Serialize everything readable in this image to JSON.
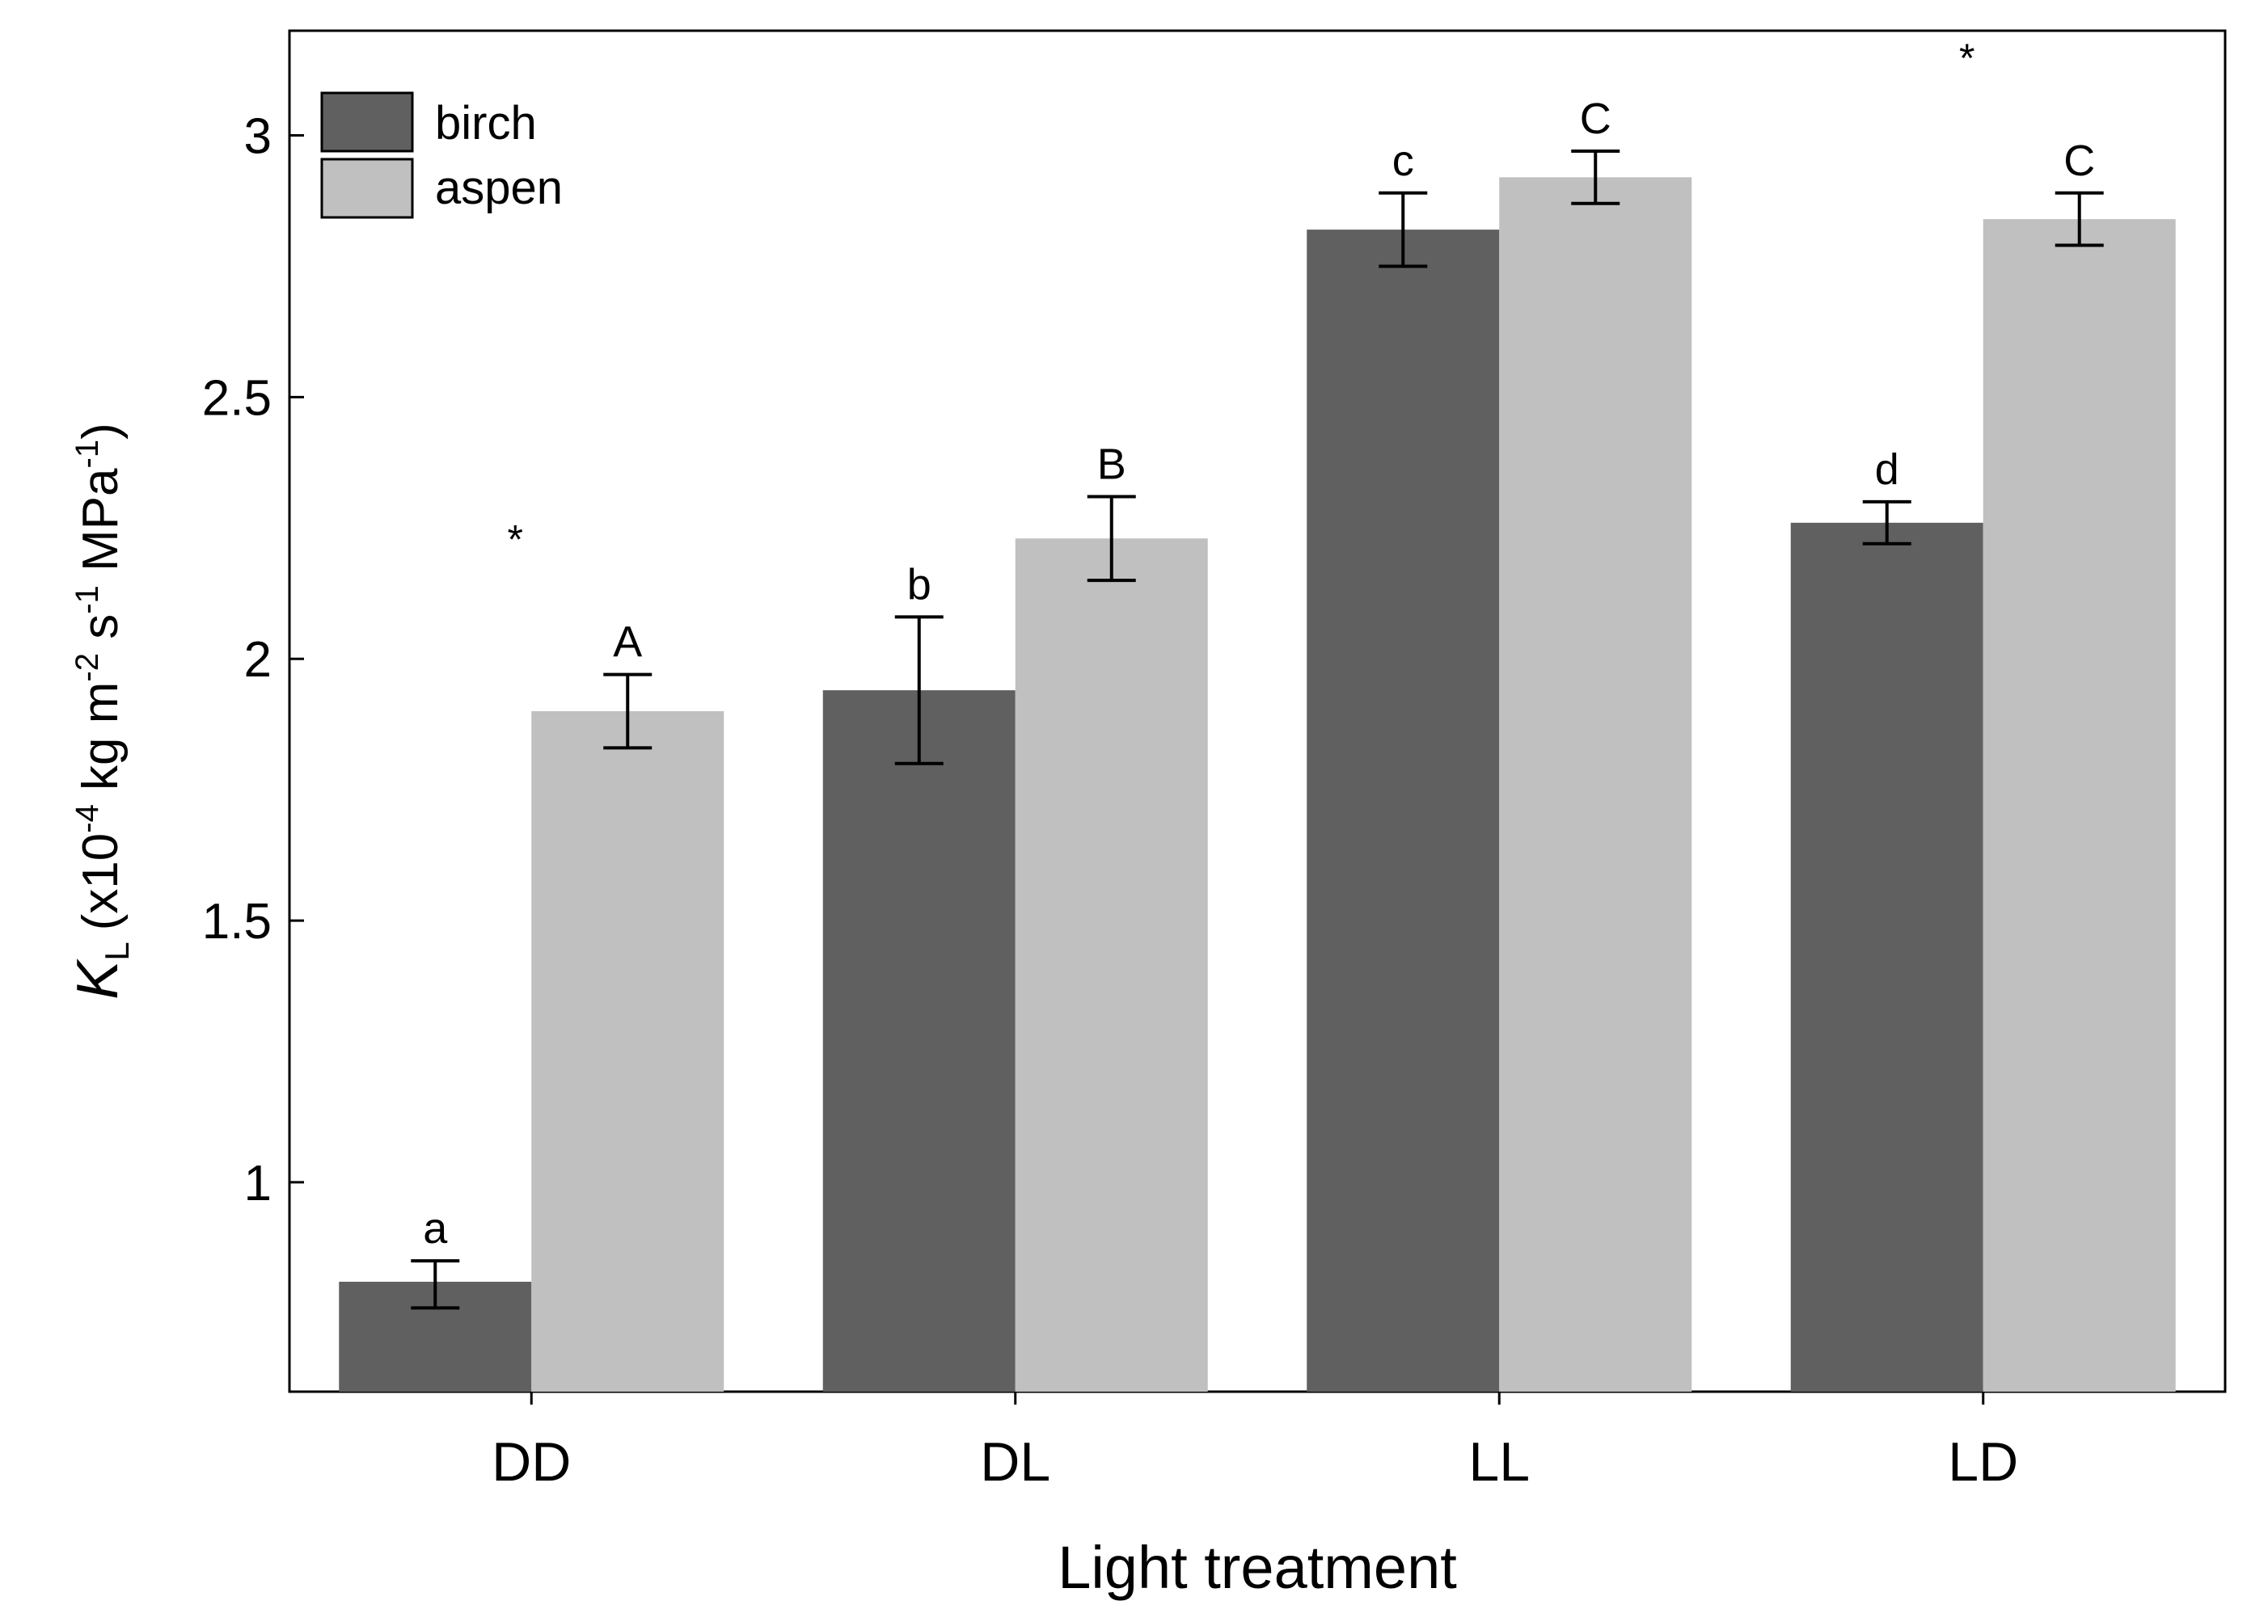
{
  "chart_data": {
    "type": "bar",
    "title": "",
    "xlabel": "Light treatment",
    "ylabel": {
      "symbol": "K",
      "subscript": "L",
      "unit_open": "(x10",
      "exp1": "-4",
      "unit_mid": " kg m",
      "exp2": "-2",
      "unit_s": " s",
      "exp3": "-1",
      "unit_mpa": " MPa",
      "exp4": "-1",
      "unit_close": ")"
    },
    "categories": [
      "DD",
      "DL",
      "LL",
      "LD"
    ],
    "ylim": [
      0.6,
      3.2
    ],
    "yticks": [
      1,
      1.5,
      2,
      2.5,
      3
    ],
    "ytick_labels": [
      "1",
      "1.5",
      "2",
      "2.5",
      "3"
    ],
    "series": [
      {
        "name": "birch",
        "color": "#606060",
        "values": [
          0.81,
          1.94,
          2.82,
          2.26
        ],
        "err_low": [
          0.76,
          1.8,
          2.75,
          2.22
        ],
        "err_high": [
          0.85,
          2.08,
          2.89,
          2.3
        ],
        "letters": [
          "a",
          "b",
          "c",
          "d"
        ]
      },
      {
        "name": "aspen",
        "color": "#c0c0c0",
        "values": [
          1.9,
          2.23,
          2.92,
          2.84
        ],
        "err_low": [
          1.83,
          2.15,
          2.87,
          2.79
        ],
        "err_high": [
          1.97,
          2.31,
          2.97,
          2.89
        ],
        "letters": [
          "A",
          "B",
          "C",
          "C"
        ]
      }
    ],
    "significance_marks": [
      "*",
      "",
      "",
      "*"
    ],
    "legend": {
      "position": "top-left"
    }
  }
}
